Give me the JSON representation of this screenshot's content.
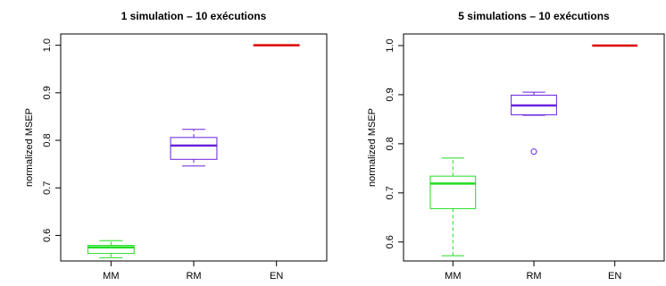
{
  "chart_data": [
    {
      "type": "boxplot",
      "title": "1 simulation – 10 exécutions",
      "xlabel": "",
      "ylabel": "normalized MSEP",
      "ylim": [
        0.55,
        1.02
      ],
      "yticks": [
        "0.6",
        "0.7",
        "0.8",
        "0.9",
        "1.0"
      ],
      "categories": [
        "MM",
        "RM",
        "EN"
      ],
      "colors": [
        "#22dd22",
        "#6a22dd",
        "#dd0000"
      ],
      "boxes": [
        {
          "name": "MM",
          "min": 0.553,
          "q1": 0.562,
          "median": 0.575,
          "q3": 0.579,
          "max": 0.589,
          "outliers": []
        },
        {
          "name": "RM",
          "min": 0.746,
          "q1": 0.76,
          "median": 0.789,
          "q3": 0.806,
          "max": 0.823,
          "outliers": []
        },
        {
          "name": "EN",
          "min": 1.0,
          "q1": 1.0,
          "median": 1.0,
          "q3": 1.0,
          "max": 1.0,
          "outliers": []
        }
      ],
      "grid": false,
      "legend": "none"
    },
    {
      "type": "boxplot",
      "title": "5 simulations – 10 exécutions",
      "xlabel": "",
      "ylabel": "normalized MSEP",
      "ylim": [
        0.565,
        1.02
      ],
      "yticks": [
        "0.6",
        "0.7",
        "0.8",
        "0.9",
        "1.0"
      ],
      "categories": [
        "MM",
        "RM",
        "EN"
      ],
      "colors": [
        "#22dd22",
        "#6a22dd",
        "#dd0000"
      ],
      "boxes": [
        {
          "name": "MM",
          "min": 0.572,
          "q1": 0.668,
          "median": 0.719,
          "q3": 0.734,
          "max": 0.771,
          "outliers": []
        },
        {
          "name": "RM",
          "min": 0.858,
          "q1": 0.859,
          "median": 0.878,
          "q3": 0.899,
          "max": 0.905,
          "outliers": [
            0.784
          ]
        },
        {
          "name": "EN",
          "min": 1.0,
          "q1": 1.0,
          "median": 1.0,
          "q3": 1.0,
          "max": 1.0,
          "outliers": []
        }
      ],
      "grid": false,
      "legend": "none"
    }
  ]
}
